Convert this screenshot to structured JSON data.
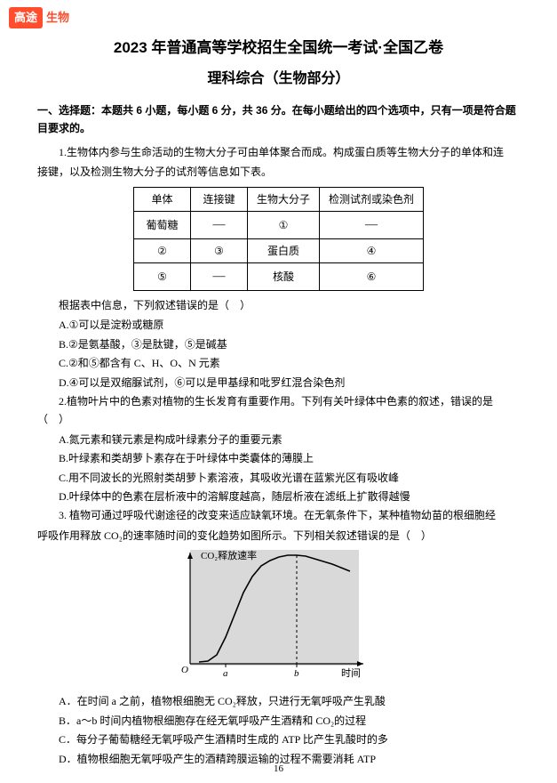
{
  "brand": {
    "badge": "高途",
    "badge_bg": "#ff4d2e",
    "text": "生物",
    "text_color": "#ff4d2e"
  },
  "title": {
    "main": "2023 年普通高等学校招生全国统一考试·全国乙卷",
    "sub": "理科综合（生物部分）"
  },
  "section": "一、选择题：本题共 6 小题，每小题 6 分，共 36 分。在每小题给出的四个选项中，只有一项是符合题目要求的。",
  "q1": {
    "stem1": "1.生物体内参与生命活动的生物大分子可由单体聚合而成。构成蛋白质等生物大分子的单体和连",
    "stem2": "接键，以及检测生物大分子的试剂等信息如下表。",
    "table": {
      "headers": [
        "单体",
        "连接键",
        "生物大分子",
        "检测试剂或染色剂"
      ],
      "rows": [
        [
          "葡萄糖",
          "—",
          "①",
          "—"
        ],
        [
          "②",
          "③",
          "蛋白质",
          "④"
        ],
        [
          "⑤",
          "—",
          "核酸",
          "⑥"
        ]
      ]
    },
    "after": "根据表中信息，下列叙述错误的是（　）",
    "options": [
      "A.①可以是淀粉或糖原",
      "B.②是氨基酸，③是肽键，⑤是碱基",
      "C.②和⑤都含有 C、H、O、N 元素",
      "D.④可以是双缩脲试剂，⑥可以是甲基绿和吡罗红混合染色剂"
    ]
  },
  "q2": {
    "stem": "2.植物叶片中的色素对植物的生长发育有重要作用。下列有关叶绿体中色素的叙述，错误的是（　）",
    "options": [
      "A.氮元素和镁元素是构成叶绿素分子的重要元素",
      "B.叶绿素和类胡萝卜素存在于叶绿体中类囊体的薄膜上",
      "C.用不同波长的光照射类胡萝卜素溶液，其吸收光谱在蓝紫光区有吸收峰",
      "D.叶绿体中的色素在层析液中的溶解度越高，随层析液在滤纸上扩散得越慢"
    ]
  },
  "q3": {
    "stem1": "3. 植物可通过呼吸代谢途径的改变来适应缺氧环境。在无氧条件下，某种植物幼苗的根细胞经",
    "stem2": "呼吸作用释放 CO₂的速率随时间的变化趋势如图所示。下列相关叙述错误的是（　）",
    "options": [
      "A．在时间 a 之前，植物根细胞无 CO₂释放，只进行无氧呼吸产生乳酸",
      "B．a～b 时间内植物根细胞存在经无氧呼吸产生酒精和 CO₂的过程",
      "C．每分子葡萄糖经无氧呼吸产生酒精时生成的 ATP 比产生乳酸时的多",
      "D．植物根细胞无氧呼吸产生的酒精跨膜运输的过程不需要消耗 ATP"
    ]
  },
  "chart": {
    "y_label": "CO₂释放速率",
    "x_label": "时间",
    "x_ticks": [
      "a",
      "b"
    ],
    "origin": "O",
    "curve_points": [
      [
        40,
        128
      ],
      [
        50,
        127
      ],
      [
        60,
        120
      ],
      [
        70,
        100
      ],
      [
        80,
        75
      ],
      [
        90,
        50
      ],
      [
        100,
        32
      ],
      [
        110,
        20
      ],
      [
        120,
        14
      ],
      [
        130,
        10
      ],
      [
        140,
        8
      ],
      [
        150,
        8
      ],
      [
        160,
        9
      ],
      [
        170,
        12
      ],
      [
        180,
        15
      ],
      [
        190,
        18
      ],
      [
        200,
        22
      ],
      [
        210,
        26
      ]
    ],
    "axis_color": "#000000",
    "curve_color": "#000000",
    "curve_width": 1.6,
    "dash_x": 150,
    "bg": "#d9d9d9"
  },
  "page_number": "16"
}
